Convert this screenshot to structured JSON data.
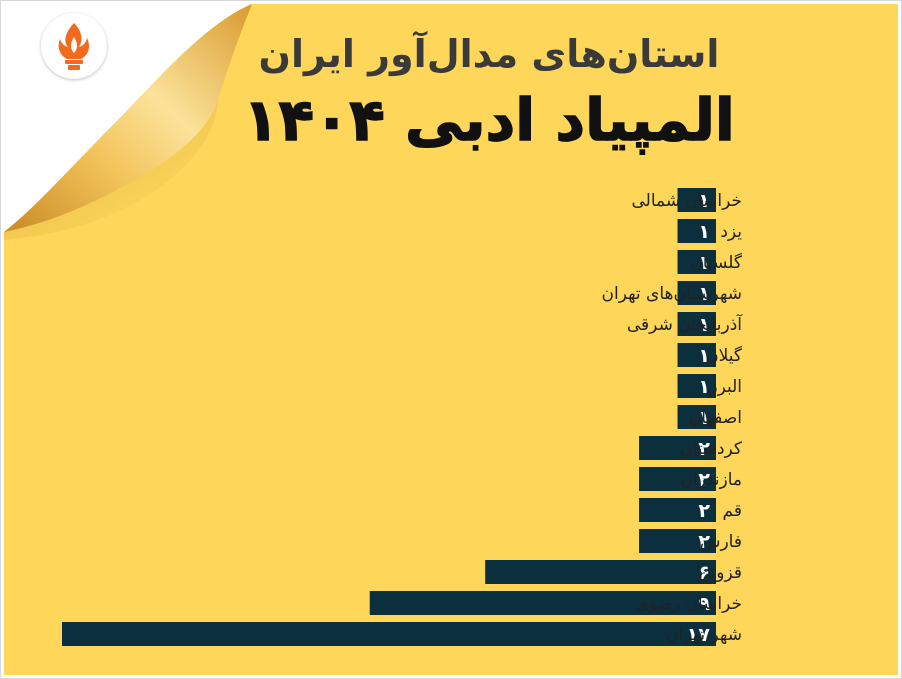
{
  "header": {
    "subtitle": "استان‌های مدال‌آور ایران",
    "title": "المپیاد ادبی ۱۴۰۴"
  },
  "logo": {
    "icon": "torch-flame-icon",
    "color": "#f26a1b"
  },
  "colors": {
    "background": "#fdd65a",
    "bar": "#0c2f3e",
    "value_text": "#ffffff",
    "label_text": "#222222",
    "curl": "#e0a93a"
  },
  "chart_data": {
    "type": "bar",
    "orientation": "horizontal",
    "categories": [
      "خراسان شمالی",
      "یزد",
      "گلستان",
      "شهرستان‌های تهران",
      "آذربایجان شرقی",
      "گیلان",
      "البرز",
      "اصفهان",
      "کردستان",
      "مازندران",
      "قم",
      "فارس",
      "قزوین",
      "خراسان رضوی",
      "شهر تهران"
    ],
    "values": [
      1,
      1,
      1,
      1,
      1,
      1,
      1,
      1,
      2,
      2,
      2,
      2,
      6,
      9,
      17
    ],
    "value_labels": [
      "۱",
      "۱",
      "۱",
      "۱",
      "۱",
      "۱",
      "۱",
      "۱",
      "۲",
      "۲",
      "۲",
      "۲",
      "۶",
      "۹",
      "۱۷"
    ],
    "title": "",
    "xlabel": "",
    "ylabel": "",
    "xlim": [
      0,
      17
    ],
    "grid": false,
    "legend": "none"
  }
}
